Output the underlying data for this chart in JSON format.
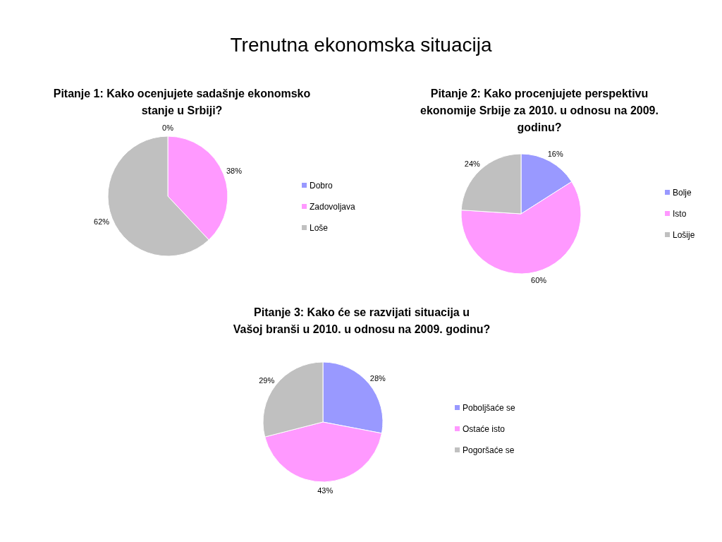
{
  "chart_data": [
    {
      "type": "pie",
      "title": "Pitanje 1: Kako ocenjujete sadašnje ekonomsko stanje u Srbiji?",
      "annotations": [
        "Trenutna ekonomska situacija"
      ],
      "categories": [
        "Dobro",
        "Zadovoljava",
        "Loše"
      ],
      "values": [
        0,
        38,
        62
      ],
      "colors": [
        "#9999ff",
        "#ff99ff",
        "#c0c0c0"
      ],
      "value_labels": [
        "0%",
        "38%",
        "62%"
      ],
      "legend": "right"
    },
    {
      "type": "pie",
      "title": "Pitanje 2: Kako procenjujete perspektivu ekonomije Srbije za 2010. u odnosu na 2009. godinu?",
      "categories": [
        "Bolje",
        "Isto",
        "Lošije"
      ],
      "values": [
        16,
        60,
        24
      ],
      "colors": [
        "#9999ff",
        "#ff99ff",
        "#c0c0c0"
      ],
      "value_labels": [
        "16%",
        "60%",
        "24%"
      ],
      "legend": "right"
    },
    {
      "type": "pie",
      "title": "Pitanje 3: Kako će se razvijati situacija u Vašoj branši u 2010. u odnosu na 2009. godinu?",
      "categories": [
        "Poboljšaće se",
        "Ostaće isto",
        "Pogoršaće se"
      ],
      "values": [
        28,
        43,
        29
      ],
      "colors": [
        "#9999ff",
        "#ff99ff",
        "#c0c0c0"
      ],
      "value_labels": [
        "28%",
        "43%",
        "29%"
      ],
      "legend": "right"
    }
  ]
}
